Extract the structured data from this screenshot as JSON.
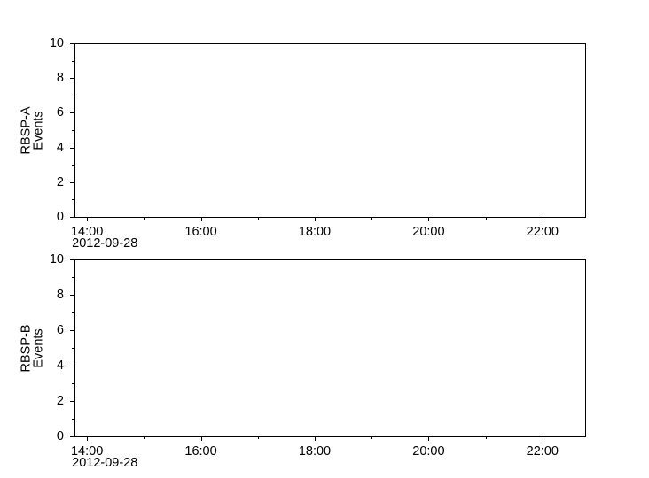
{
  "figure": {
    "background": "#ffffff",
    "axis_color": "#000000",
    "text_color": "#000000"
  },
  "chart_data": [
    {
      "type": "line",
      "panel": "RBSP-A",
      "title": "",
      "ylabel_lines": [
        "RBSP-A",
        "Events"
      ],
      "ylim": [
        0,
        10
      ],
      "ytick_major": [
        0,
        2,
        4,
        6,
        8,
        10
      ],
      "ytick_minor": [
        1,
        3,
        5,
        7,
        9
      ],
      "xlim_hours": [
        13.78,
        22.75
      ],
      "xtick_major": [
        {
          "hour": 14,
          "label": "14:00"
        },
        {
          "hour": 16,
          "label": "16:00"
        },
        {
          "hour": 18,
          "label": "18:00"
        },
        {
          "hour": 20,
          "label": "20:00"
        },
        {
          "hour": 22,
          "label": "22:00"
        }
      ],
      "xtick_minor_hours": [
        15,
        17,
        19,
        21
      ],
      "date_label": "2012-09-28",
      "grid": false,
      "series": []
    },
    {
      "type": "line",
      "panel": "RBSP-B",
      "title": "",
      "ylabel_lines": [
        "RBSP-B",
        "Events"
      ],
      "ylim": [
        0,
        10
      ],
      "ytick_major": [
        0,
        2,
        4,
        6,
        8,
        10
      ],
      "ytick_minor": [
        1,
        3,
        5,
        7,
        9
      ],
      "xlim_hours": [
        13.78,
        22.75
      ],
      "xtick_major": [
        {
          "hour": 14,
          "label": "14:00"
        },
        {
          "hour": 16,
          "label": "16:00"
        },
        {
          "hour": 18,
          "label": "18:00"
        },
        {
          "hour": 20,
          "label": "20:00"
        },
        {
          "hour": 22,
          "label": "22:00"
        }
      ],
      "xtick_minor_hours": [
        15,
        17,
        19,
        21
      ],
      "date_label": "2012-09-28",
      "grid": false,
      "series": []
    }
  ]
}
